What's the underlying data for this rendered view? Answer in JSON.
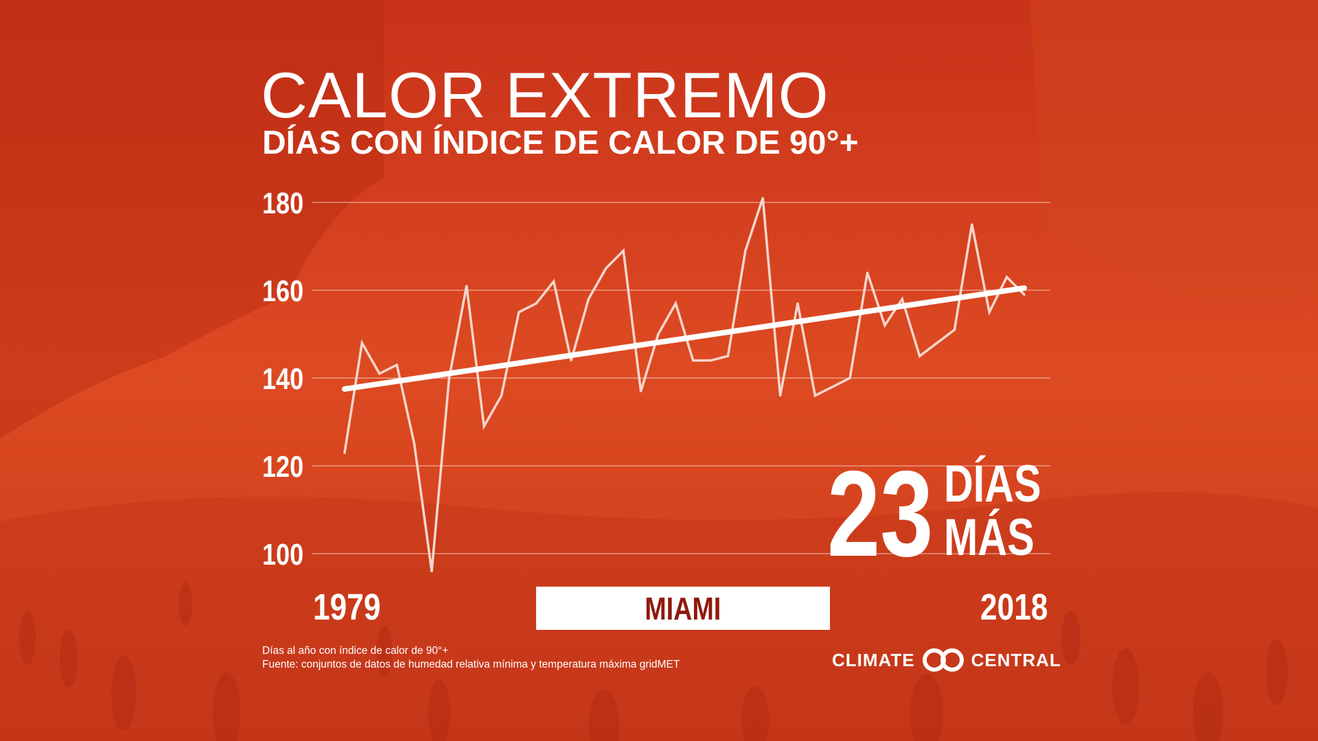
{
  "header": {
    "title": "CALOR EXTREMO",
    "subtitle": "DÍAS CON ÍNDICE DE CALOR DE 90°+"
  },
  "colors": {
    "background": "#d9461d",
    "line": "#f6d6cc",
    "trend": "#ffffff",
    "city_text": "#8e1a0c"
  },
  "highlight": {
    "number": "23",
    "word1": "DÍAS",
    "word2": "MÁS"
  },
  "city": "MIAMI",
  "footnotes": {
    "line1": "Días al año con índice de calor de 90°+",
    "line2": "Fuente: conjuntos de datos de humedad relativa mínima y temperatura máxima gridMET"
  },
  "logo": {
    "left": "CLIMATE",
    "right": "CENTRAL",
    "icon": "linked-rings-icon"
  },
  "chart_data": {
    "type": "line",
    "title": "CALOR EXTREMO",
    "subtitle": "DÍAS CON ÍNDICE DE CALOR DE 90°+",
    "xlabel": "",
    "ylabel": "",
    "xlim": [
      1979,
      2018
    ],
    "ylim": [
      100,
      180
    ],
    "yticks": [
      100,
      120,
      140,
      160,
      180
    ],
    "xtick_labels": [
      "1979",
      "2018"
    ],
    "grid": true,
    "x": [
      1979,
      1980,
      1981,
      1982,
      1983,
      1984,
      1985,
      1986,
      1987,
      1988,
      1989,
      1990,
      1991,
      1992,
      1993,
      1994,
      1995,
      1996,
      1997,
      1998,
      1999,
      2000,
      2001,
      2002,
      2003,
      2004,
      2005,
      2006,
      2007,
      2008,
      2009,
      2010,
      2011,
      2012,
      2013,
      2014,
      2015,
      2016,
      2017,
      2018
    ],
    "series": [
      {
        "values": [
          123,
          148,
          141,
          143,
          125,
          96,
          140,
          161,
          129,
          136,
          155,
          157,
          162,
          144,
          158,
          165,
          169,
          137,
          150,
          157,
          144,
          144,
          145,
          169,
          181,
          136,
          157,
          136,
          138,
          140,
          164,
          152,
          158,
          145,
          148,
          151,
          175,
          155,
          163,
          159
        ]
      }
    ],
    "trend": {
      "start": [
        1979,
        137.5
      ],
      "end": [
        2018,
        160.5
      ]
    }
  }
}
